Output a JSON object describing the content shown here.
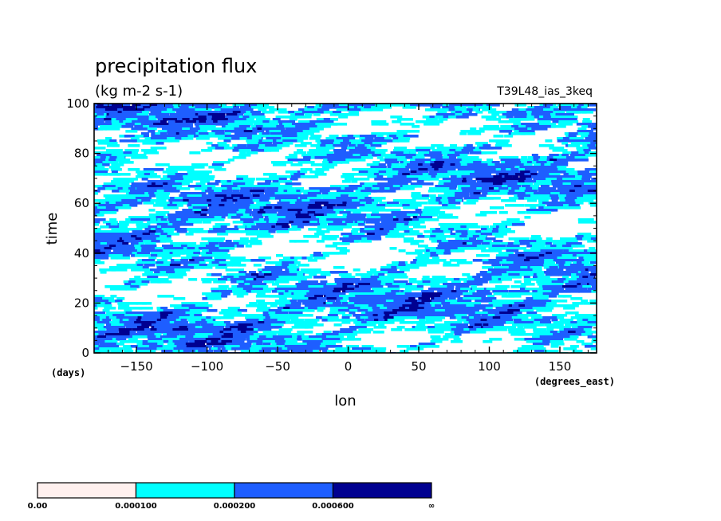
{
  "chart_data": {
    "type": "heatmap",
    "title": "precipitation flux",
    "subtitle": "(kg m-2 s-1)",
    "model_label": "T39L48_ias_3keq",
    "xlabel": "lon",
    "x_units": "(degrees_east)",
    "ylabel": "time",
    "y_units": "(days)",
    "xlim": [
      -180,
      176
    ],
    "ylim": [
      0,
      100
    ],
    "x_ticks": [
      -150,
      -100,
      -50,
      0,
      50,
      100,
      150
    ],
    "x_tick_labels": [
      "−150",
      "−100",
      "−50",
      "0",
      "50",
      "100",
      "150"
    ],
    "y_ticks": [
      0,
      20,
      40,
      60,
      80,
      100
    ],
    "y_tick_labels": [
      "0",
      "20",
      "40",
      "60",
      "80",
      "100"
    ],
    "levels": [
      0.0,
      0.0001,
      0.0002,
      0.0006
    ],
    "level_labels": [
      "0.00",
      "0.000100",
      "0.000200",
      "0.000600",
      "∞"
    ],
    "colors": [
      "#fff0ee",
      "#00ffff",
      "#1e5eff",
      "#000090"
    ],
    "grid": false
  }
}
